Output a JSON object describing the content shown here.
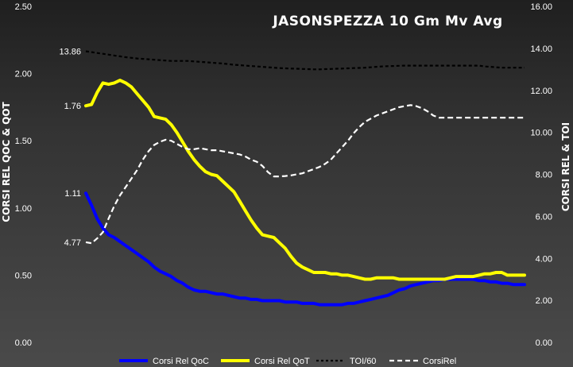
{
  "chart_data": {
    "type": "line",
    "title": "JASONSPEZZA 10 Gm Mv Avg",
    "ylabel_left": "CORSI REL QOC & QOT",
    "ylabel_right": "CORSI REL & TOI",
    "y_left": {
      "range": [
        0,
        2.5
      ],
      "ticks": [
        "0.00",
        "0.50",
        "1.00",
        "1.50",
        "2.00",
        "2.50"
      ]
    },
    "y_right": {
      "range": [
        0,
        16
      ],
      "ticks": [
        "0.00",
        "2.00",
        "4.00",
        "6.00",
        "8.00",
        "10.00",
        "12.00",
        "14.00",
        "16.00"
      ]
    },
    "x": [
      1,
      2,
      3,
      4,
      5,
      6,
      7,
      8,
      9,
      10,
      11,
      12,
      13,
      14,
      15,
      16,
      17,
      18,
      19,
      20,
      21,
      22,
      23,
      24,
      25,
      26,
      27,
      28,
      29,
      30,
      31,
      32,
      33,
      34,
      35,
      36,
      37,
      38,
      39,
      40,
      41,
      42,
      43,
      44,
      45,
      46,
      47,
      48,
      49,
      50,
      51,
      52,
      53,
      54,
      55,
      56,
      57,
      58,
      59,
      60,
      61,
      62,
      63,
      64,
      65,
      66,
      67,
      68,
      69,
      70,
      71,
      72,
      73,
      74,
      75,
      76,
      77,
      78
    ],
    "series": [
      {
        "name": "Corsi Rel QoC",
        "axis": "left",
        "color": "#0000ff",
        "dash": "solid",
        "values": [
          1.11,
          1.02,
          0.92,
          0.85,
          0.8,
          0.78,
          0.75,
          0.72,
          0.69,
          0.66,
          0.63,
          0.6,
          0.56,
          0.53,
          0.51,
          0.49,
          0.46,
          0.44,
          0.41,
          0.39,
          0.38,
          0.38,
          0.37,
          0.36,
          0.36,
          0.35,
          0.34,
          0.33,
          0.33,
          0.32,
          0.32,
          0.31,
          0.31,
          0.31,
          0.31,
          0.3,
          0.3,
          0.3,
          0.29,
          0.29,
          0.29,
          0.28,
          0.28,
          0.28,
          0.28,
          0.28,
          0.29,
          0.29,
          0.3,
          0.31,
          0.32,
          0.33,
          0.34,
          0.35,
          0.37,
          0.39,
          0.4,
          0.42,
          0.43,
          0.44,
          0.45,
          0.46,
          0.46,
          0.47,
          0.47,
          0.47,
          0.47,
          0.47,
          0.47,
          0.46,
          0.46,
          0.45,
          0.45,
          0.44,
          0.44,
          0.43,
          0.43,
          0.43
        ]
      },
      {
        "name": "Corsi Rel QoT",
        "axis": "left",
        "color": "#ffff00",
        "dash": "solid",
        "values": [
          1.76,
          1.77,
          1.86,
          1.93,
          1.92,
          1.93,
          1.95,
          1.93,
          1.9,
          1.85,
          1.8,
          1.75,
          1.68,
          1.67,
          1.66,
          1.62,
          1.56,
          1.49,
          1.42,
          1.36,
          1.31,
          1.27,
          1.25,
          1.24,
          1.2,
          1.16,
          1.12,
          1.05,
          0.98,
          0.91,
          0.85,
          0.8,
          0.79,
          0.78,
          0.74,
          0.7,
          0.64,
          0.59,
          0.56,
          0.54,
          0.52,
          0.52,
          0.52,
          0.51,
          0.51,
          0.5,
          0.5,
          0.49,
          0.48,
          0.47,
          0.47,
          0.48,
          0.48,
          0.48,
          0.48,
          0.47,
          0.47,
          0.47,
          0.47,
          0.47,
          0.47,
          0.47,
          0.47,
          0.47,
          0.48,
          0.49,
          0.49,
          0.49,
          0.49,
          0.5,
          0.51,
          0.51,
          0.52,
          0.52,
          0.5,
          0.5,
          0.5,
          0.5
        ]
      },
      {
        "name": "TOI/60",
        "axis": "right",
        "color": "#000000",
        "dash": "4,3",
        "values": [
          13.86,
          13.82,
          13.78,
          13.74,
          13.7,
          13.66,
          13.62,
          13.58,
          13.55,
          13.52,
          13.5,
          13.48,
          13.46,
          13.44,
          13.42,
          13.4,
          13.4,
          13.4,
          13.4,
          13.38,
          13.36,
          13.34,
          13.32,
          13.3,
          13.28,
          13.25,
          13.22,
          13.2,
          13.18,
          13.16,
          13.14,
          13.12,
          13.1,
          13.08,
          13.06,
          13.05,
          13.04,
          13.03,
          13.02,
          13.01,
          13.0,
          13.0,
          13.01,
          13.02,
          13.03,
          13.04,
          13.05,
          13.06,
          13.07,
          13.08,
          13.1,
          13.12,
          13.14,
          13.15,
          13.16,
          13.17,
          13.18,
          13.18,
          13.18,
          13.18,
          13.18,
          13.18,
          13.18,
          13.18,
          13.18,
          13.18,
          13.18,
          13.18,
          13.18,
          13.18,
          13.14,
          13.12,
          13.1,
          13.08,
          13.08,
          13.08,
          13.08,
          13.08
        ]
      },
      {
        "name": "CorsiRel",
        "axis": "right",
        "color": "#ffffff",
        "dash": "7,4",
        "values": [
          4.77,
          4.72,
          4.95,
          5.25,
          5.9,
          6.5,
          7.0,
          7.4,
          7.8,
          8.2,
          8.7,
          9.1,
          9.4,
          9.55,
          9.65,
          9.6,
          9.45,
          9.3,
          9.2,
          9.2,
          9.25,
          9.2,
          9.15,
          9.15,
          9.1,
          9.05,
          9.0,
          8.95,
          8.85,
          8.7,
          8.6,
          8.4,
          8.1,
          7.9,
          7.9,
          7.92,
          7.95,
          8.0,
          8.05,
          8.15,
          8.25,
          8.35,
          8.5,
          8.7,
          9.0,
          9.3,
          9.6,
          9.95,
          10.25,
          10.5,
          10.65,
          10.8,
          10.9,
          11.0,
          11.1,
          11.2,
          11.25,
          11.3,
          11.25,
          11.15,
          11.0,
          10.8,
          10.7,
          10.7,
          10.7,
          10.7,
          10.7,
          10.7,
          10.7,
          10.7,
          10.7,
          10.7,
          10.7,
          10.7,
          10.7,
          10.7,
          10.7,
          10.7
        ]
      }
    ],
    "annotations": [
      {
        "text": "1.11",
        "series": "Corsi Rel QoC",
        "axis": "left",
        "value": 1.11
      },
      {
        "text": "1.76",
        "series": "Corsi Rel QoT",
        "axis": "left",
        "value": 1.76
      },
      {
        "text": "13.86",
        "series": "TOI/60",
        "axis": "right",
        "value": 13.86
      },
      {
        "text": "4.77",
        "series": "CorsiRel",
        "axis": "right",
        "value": 4.77
      }
    ],
    "legend": {
      "placement": "bottom"
    },
    "grid": false
  }
}
